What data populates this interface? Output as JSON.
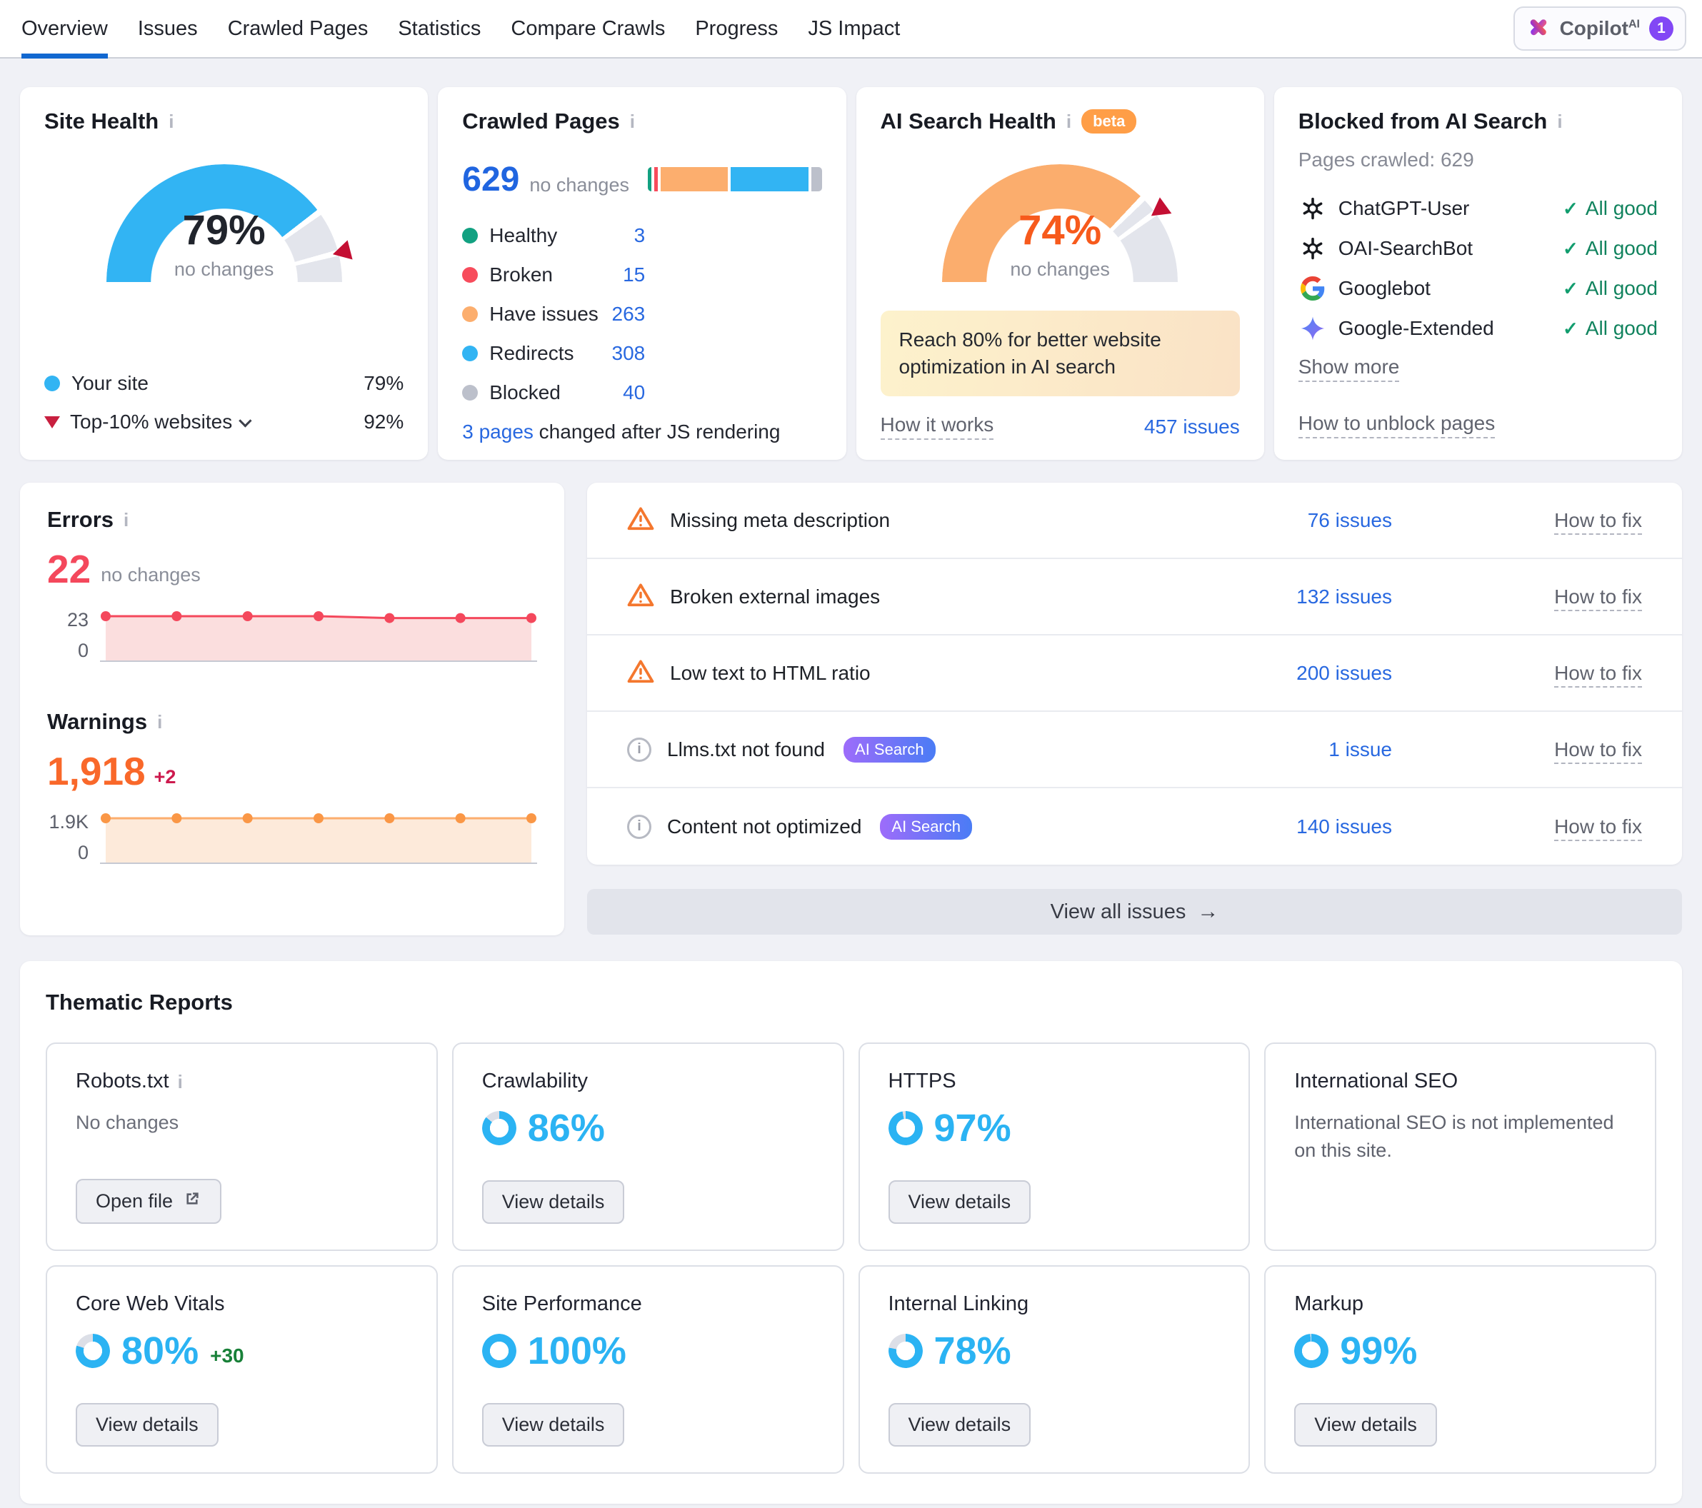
{
  "icons": {
    "info": "i",
    "check": "✓",
    "arrow_right": "→"
  },
  "colors": {
    "accent_blue": "#2bb3f3",
    "link_blue": "#2868e0",
    "error_red": "#f4485c",
    "warning_orange": "#f9682a",
    "gauge_track": "#e3e5ec",
    "marker_red": "#c40f33"
  },
  "nav": {
    "tabs": [
      {
        "label": "Overview",
        "active": true
      },
      {
        "label": "Issues"
      },
      {
        "label": "Crawled Pages"
      },
      {
        "label": "Statistics"
      },
      {
        "label": "Compare Crawls"
      },
      {
        "label": "Progress"
      },
      {
        "label": "JS Impact"
      }
    ],
    "copilot": {
      "label": "Copilot",
      "sup": "AI",
      "badge": "1"
    }
  },
  "site_health": {
    "title": "Site Health",
    "value": 79,
    "value_label": "79%",
    "change": "no changes",
    "benchmark": 92,
    "color": "#32b4f3",
    "legend": [
      {
        "label": "Your site",
        "value": "79%"
      },
      {
        "label": "Top-10% websites",
        "value": "92%"
      }
    ]
  },
  "crawled_pages": {
    "title": "Crawled Pages",
    "total": "629",
    "change": "no changes",
    "segments": [
      {
        "label": "Healthy",
        "value": 3,
        "color": "#12a181"
      },
      {
        "label": "Broken",
        "value": 15,
        "color": "#f74c5c"
      },
      {
        "label": "Have issues",
        "value": 263,
        "color": "#fcae6e"
      },
      {
        "label": "Redirects",
        "value": 308,
        "color": "#32b4f3"
      },
      {
        "label": "Blocked",
        "value": 40,
        "color": "#bcc0cb"
      }
    ],
    "footer_link": "3 pages",
    "footer_text": "changed after JS rendering"
  },
  "ai_search_health": {
    "title": "AI Search Health",
    "beta": "beta",
    "value": 74,
    "value_label": "74%",
    "change": "no changes",
    "benchmark": 80,
    "color": "#fbad6d",
    "callout": "Reach 80% for better website optimization in AI search",
    "how_link": "How it works",
    "issues_link": "457 issues"
  },
  "blocked_ai": {
    "title": "Blocked from AI Search",
    "subtitle": "Pages crawled: 629",
    "bots": [
      {
        "name": "ChatGPT-User",
        "status": "All good"
      },
      {
        "name": "OAI-SearchBot",
        "status": "All good"
      },
      {
        "name": "Googlebot",
        "status": "All good"
      },
      {
        "name": "Google-Extended",
        "status": "All good"
      }
    ],
    "show_more": "Show more",
    "unblock_link": "How to unblock pages"
  },
  "errors": {
    "title": "Errors",
    "value": "22",
    "change": "no changes",
    "chart": {
      "type": "area",
      "max_label": "23",
      "min_label": "0",
      "max": 23,
      "values": [
        23,
        23,
        23,
        23,
        22,
        22,
        22
      ],
      "line": "#f4485c",
      "fill": "#fbdede",
      "dot": "#f4485c"
    }
  },
  "warnings": {
    "title": "Warnings",
    "value": "1,918",
    "delta": "+2",
    "chart": {
      "type": "area",
      "max_label": "1.9K",
      "min_label": "0",
      "max": 1918,
      "values": [
        1918,
        1918,
        1918,
        1918,
        1918,
        1918,
        1918
      ],
      "line": "#fcae6e",
      "fill": "#fdeada",
      "dot": "#fa9746"
    }
  },
  "issues": {
    "rows": [
      {
        "icon": "warning",
        "title": "Missing meta description",
        "count": "76 issues",
        "fix": "How to fix"
      },
      {
        "icon": "warning",
        "title": "Broken external images",
        "count": "132 issues",
        "fix": "How to fix"
      },
      {
        "icon": "warning",
        "title": "Low text to HTML ratio",
        "count": "200 issues",
        "fix": "How to fix"
      },
      {
        "icon": "info",
        "title": "Llms.txt not found",
        "badge": "AI Search",
        "count": "1 issue",
        "fix": "How to fix"
      },
      {
        "icon": "info",
        "title": "Content not optimized",
        "badge": "AI Search",
        "count": "140 issues",
        "fix": "How to fix"
      }
    ],
    "view_all": "View all issues"
  },
  "thematic": {
    "title": "Thematic Reports",
    "cards": [
      {
        "title": "Robots.txt",
        "note": "No changes",
        "button": "Open file"
      },
      {
        "title": "Crawlability",
        "pct": 86,
        "pct_label": "86%",
        "button": "View details"
      },
      {
        "title": "HTTPS",
        "pct": 97,
        "pct_label": "97%",
        "button": "View details"
      },
      {
        "title": "International SEO",
        "desc": "International SEO is not implemented on this site."
      },
      {
        "title": "Core Web Vitals",
        "pct": 80,
        "pct_label": "80%",
        "delta": "+30",
        "button": "View details"
      },
      {
        "title": "Site Performance",
        "pct": 100,
        "pct_label": "100%",
        "button": "View details"
      },
      {
        "title": "Internal Linking",
        "pct": 78,
        "pct_label": "78%",
        "button": "View details"
      },
      {
        "title": "Markup",
        "pct": 99,
        "pct_label": "99%",
        "button": "View details"
      }
    ]
  }
}
